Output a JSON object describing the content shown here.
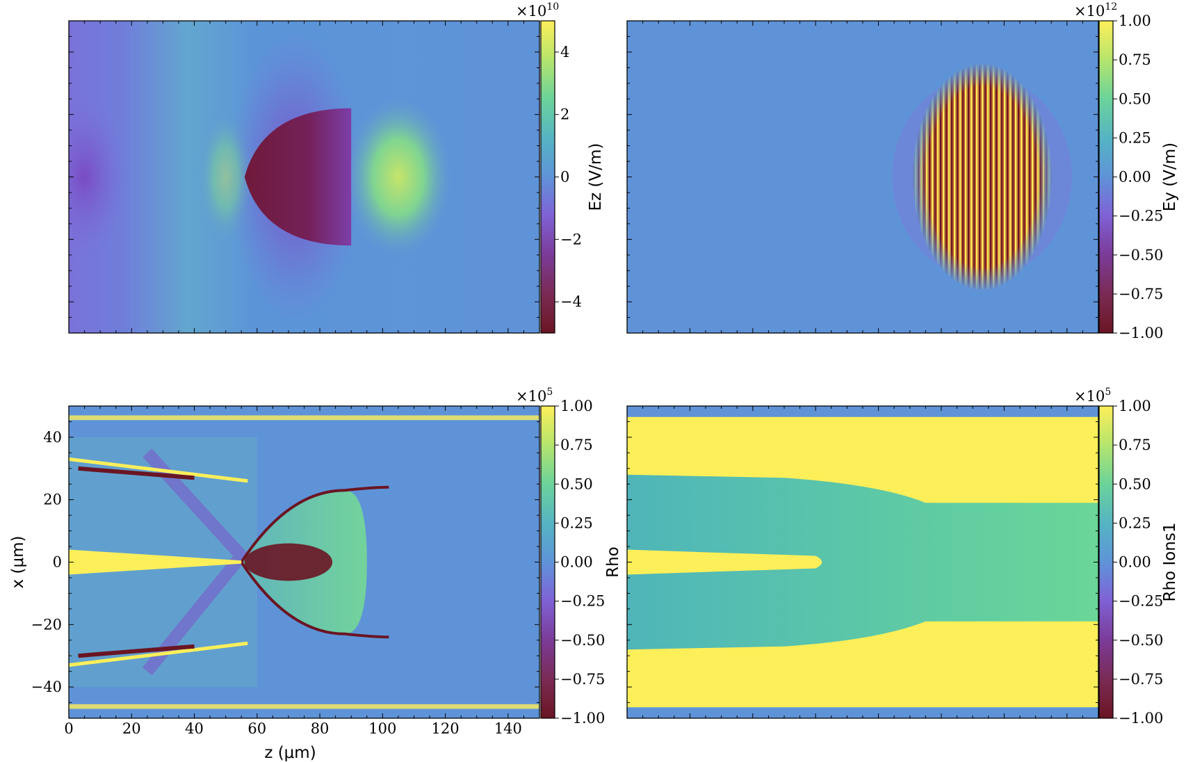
{
  "chart_data": [
    {
      "type": "heatmap",
      "panel": "top-left",
      "field": "Ez",
      "xlim": [
        0,
        150
      ],
      "ylim": [
        -50,
        50
      ],
      "x_ticks": [
        0,
        20,
        40,
        60,
        80,
        100,
        120,
        140
      ],
      "y_ticks": [
        -40,
        -20,
        0,
        20,
        40
      ],
      "show_x_ticklabels": false,
      "show_y_ticklabels": false,
      "xlabel": "",
      "ylabel": "",
      "colorbar": {
        "label": "Ez  (V/m)",
        "multiplier_base": "×10",
        "multiplier_exp": "10",
        "range": [
          -5,
          5
        ],
        "ticks": [
          -4,
          -2,
          0,
          2,
          4
        ],
        "tick_labels": [
          "−4",
          "−2",
          "0",
          "2",
          "4"
        ]
      },
      "structures": [
        {
          "kind": "uniform-background",
          "value": -0.8
        },
        {
          "kind": "negative-cone",
          "z_range": [
            56,
            90
          ],
          "x_halfwidth": 22,
          "value": -4.5
        },
        {
          "kind": "positive-lobe",
          "z_center": 105,
          "x_halfwidth": 25,
          "value": 3.0
        }
      ]
    },
    {
      "type": "heatmap",
      "panel": "top-right",
      "field": "Ey",
      "xlim": [
        0,
        150
      ],
      "ylim": [
        -50,
        50
      ],
      "x_ticks": [
        0,
        20,
        40,
        60,
        80,
        100,
        120,
        140
      ],
      "y_ticks": [
        -40,
        -20,
        0,
        20,
        40
      ],
      "show_x_ticklabels": false,
      "show_y_ticklabels": false,
      "xlabel": "",
      "ylabel": "",
      "colorbar": {
        "label": "Ey  (V/m)",
        "multiplier_base": "×10",
        "multiplier_exp": "12",
        "range": [
          -1.0,
          1.0
        ],
        "ticks": [
          -1.0,
          -0.75,
          -0.5,
          -0.25,
          0.0,
          0.25,
          0.5,
          0.75,
          1.0
        ],
        "tick_labels": [
          "−1.00",
          "−0.75",
          "−0.50",
          "−0.25",
          "0.00",
          "0.25",
          "0.50",
          "0.75",
          "1.00"
        ]
      },
      "structures": [
        {
          "kind": "uniform-background",
          "value": -0.15
        },
        {
          "kind": "laser-pulse-ellipse",
          "z_center": 113,
          "z_halfwidth": 22,
          "x_halfwidth": 36,
          "value_range": [
            -1,
            1
          ]
        }
      ]
    },
    {
      "type": "heatmap",
      "panel": "bottom-left",
      "field": "Rho",
      "xlim": [
        0,
        150
      ],
      "ylim": [
        -50,
        50
      ],
      "x_ticks": [
        0,
        20,
        40,
        60,
        80,
        100,
        120,
        140
      ],
      "x_tick_labels": [
        "0",
        "20",
        "40",
        "60",
        "80",
        "100",
        "120",
        "140"
      ],
      "y_ticks": [
        -40,
        -20,
        0,
        20,
        40
      ],
      "y_tick_labels": [
        "−40",
        "−20",
        "0",
        "20",
        "40"
      ],
      "show_x_ticklabels": true,
      "show_y_ticklabels": true,
      "xlabel": "z  (μm)",
      "ylabel": "x  (μm)",
      "colorbar": {
        "label": "Rho",
        "multiplier_base": "×10",
        "multiplier_exp": "5",
        "range": [
          -1.0,
          1.0
        ],
        "ticks": [
          -1.0,
          -0.75,
          -0.5,
          -0.25,
          0.0,
          0.25,
          0.5,
          0.75,
          1.0
        ],
        "tick_labels": [
          "−1.00",
          "−0.75",
          "−0.50",
          "−0.25",
          "0.00",
          "0.25",
          "0.50",
          "0.75",
          "1.00"
        ]
      },
      "structures": [
        {
          "kind": "uniform-background",
          "value": -0.15
        },
        {
          "kind": "bubble",
          "z_range": [
            55,
            95
          ],
          "x_halfwidth": 23,
          "value": 0.2
        },
        {
          "kind": "electron-bunch",
          "z_center": 70,
          "x_halfwidth": 6,
          "value": -1.0
        },
        {
          "kind": "axis-jet",
          "z_range": [
            0,
            55
          ],
          "value": 1.0
        }
      ]
    },
    {
      "type": "heatmap",
      "panel": "bottom-right",
      "field": "Rho Ions1",
      "xlim": [
        0,
        150
      ],
      "ylim": [
        -50,
        50
      ],
      "x_ticks": [
        0,
        20,
        40,
        60,
        80,
        100,
        120,
        140
      ],
      "y_ticks": [
        -40,
        -20,
        0,
        20,
        40
      ],
      "show_x_ticklabels": false,
      "show_y_ticklabels": false,
      "xlabel": "",
      "ylabel": "",
      "colorbar": {
        "label": "Rho Ions1",
        "multiplier_base": "×10",
        "multiplier_exp": "5",
        "range": [
          -1.0,
          1.0
        ],
        "ticks": [
          -1.0,
          -0.75,
          -0.5,
          -0.25,
          0.0,
          0.25,
          0.5,
          0.75,
          1.0
        ],
        "tick_labels": [
          "−1.00",
          "−0.75",
          "−0.50",
          "−0.25",
          "0.00",
          "0.25",
          "0.50",
          "0.75",
          "1.00"
        ]
      },
      "structures": [
        {
          "kind": "channel-walls",
          "x_abs_range": [
            28,
            46
          ],
          "value": 1.0
        },
        {
          "kind": "channel-interior",
          "value": 0.2
        },
        {
          "kind": "axis-jet",
          "z_range": [
            0,
            64
          ],
          "value": 1.0
        }
      ]
    }
  ]
}
